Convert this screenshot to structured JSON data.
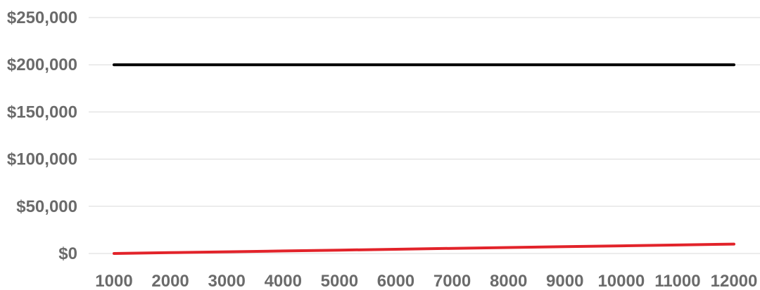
{
  "chart_data": {
    "type": "line",
    "x": [
      1000,
      2000,
      3000,
      4000,
      5000,
      6000,
      7000,
      8000,
      9000,
      10000,
      11000,
      12000
    ],
    "x_tick_labels": [
      "1000",
      "2000",
      "3000",
      "4000",
      "5000",
      "6000",
      "7000",
      "8000",
      "9000",
      "10000",
      "11000",
      "12000"
    ],
    "ylim": [
      0,
      250000
    ],
    "y_ticks": [
      0,
      50000,
      100000,
      150000,
      200000,
      250000
    ],
    "y_tick_labels": [
      "$0",
      "$50,000",
      "$100,000",
      "$150,000",
      "$200,000",
      "$250,000"
    ],
    "grid": true,
    "legend": "none",
    "series": [
      {
        "color": "#000000",
        "values": [
          200000,
          200000,
          200000,
          200000,
          200000,
          200000,
          200000,
          200000,
          200000,
          200000,
          200000,
          200000
        ]
      },
      {
        "color": "#e2232a",
        "values": [
          0,
          900,
          1800,
          2700,
          3600,
          4500,
          5400,
          6300,
          7200,
          8100,
          9000,
          10000
        ]
      }
    ]
  }
}
